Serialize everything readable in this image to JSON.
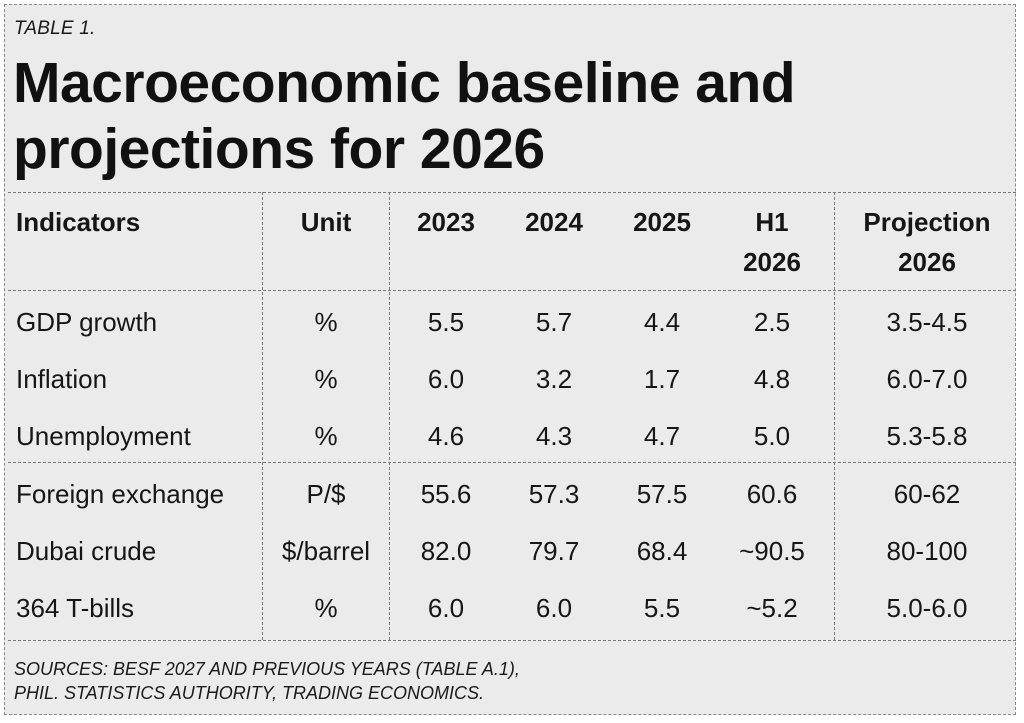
{
  "label": "TABLE 1.",
  "title_line1": "Macroeconomic baseline and",
  "title_line2": "projections for 2026",
  "columns": {
    "indicators": "Indicators",
    "unit": "Unit",
    "y2023": "2023",
    "y2024": "2024",
    "y2025": "2025",
    "h1_line1": "H1",
    "h1_line2": "2026",
    "proj_line1": "Projection",
    "proj_line2": "2026"
  },
  "rows": [
    {
      "indicator": "GDP growth",
      "unit": "%",
      "y2023": "5.5",
      "y2024": "5.7",
      "y2025": "4.4",
      "h1_2026": "2.5",
      "projection_2026": "3.5-4.5"
    },
    {
      "indicator": "Inflation",
      "unit": "%",
      "y2023": "6.0",
      "y2024": "3.2",
      "y2025": "1.7",
      "h1_2026": "4.8",
      "projection_2026": "6.0-7.0"
    },
    {
      "indicator": "Unemployment",
      "unit": "%",
      "y2023": "4.6",
      "y2024": "4.3",
      "y2025": "4.7",
      "h1_2026": "5.0",
      "projection_2026": "5.3-5.8"
    },
    {
      "indicator": "Foreign exchange",
      "unit": "P/$",
      "y2023": "55.6",
      "y2024": "57.3",
      "y2025": "57.5",
      "h1_2026": "60.6",
      "projection_2026": "60-62"
    },
    {
      "indicator": "Dubai crude",
      "unit": "$/barrel",
      "y2023": "82.0",
      "y2024": "79.7",
      "y2025": "68.4",
      "h1_2026": "~90.5",
      "projection_2026": "80-100"
    },
    {
      "indicator": "364 T-bills",
      "unit": "%",
      "y2023": "6.0",
      "y2024": "6.0",
      "y2025": "5.5",
      "h1_2026": "~5.2",
      "projection_2026": "5.0-6.0"
    }
  ],
  "sources_line1": "SOURCES: BESF 2027 AND PREVIOUS YEARS (TABLE A.1),",
  "sources_line2": "PHIL. STATISTICS AUTHORITY, TRADING ECONOMICS."
}
